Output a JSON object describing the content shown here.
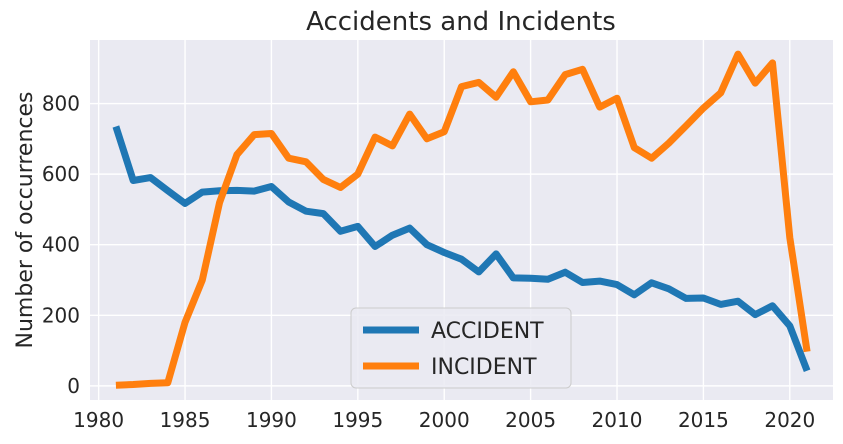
{
  "chart_data": {
    "type": "line",
    "title": "Accidents and Incidents",
    "xlabel": "",
    "ylabel": "Number of occurrences",
    "xlim": [
      1979.5,
      2022.5
    ],
    "ylim": [
      -40,
      980
    ],
    "xticks": [
      1980,
      1985,
      1990,
      1995,
      2000,
      2005,
      2010,
      2015,
      2020
    ],
    "yticks": [
      0,
      200,
      400,
      600,
      800
    ],
    "grid": true,
    "legend_position": "lower-center",
    "background": "#eaeaf2",
    "x": [
      1981,
      1982,
      1983,
      1984,
      1985,
      1986,
      1987,
      1988,
      1989,
      1990,
      1991,
      1992,
      1993,
      1994,
      1995,
      1996,
      1997,
      1998,
      1999,
      2000,
      2001,
      2002,
      2003,
      2004,
      2005,
      2006,
      2007,
      2008,
      2009,
      2010,
      2011,
      2012,
      2013,
      2014,
      2015,
      2016,
      2017,
      2018,
      2019,
      2020,
      2021
    ],
    "series": [
      {
        "name": "ACCIDENT",
        "color": "#1f77b4",
        "values": [
          735,
          582,
          590,
          553,
          517,
          549,
          553,
          554,
          552,
          565,
          521,
          495,
          488,
          438,
          452,
          395,
          427,
          447,
          400,
          378,
          359,
          323,
          374,
          306,
          305,
          302,
          322,
          293,
          297,
          287,
          258,
          292,
          275,
          248,
          249,
          231,
          240,
          202,
          227,
          170,
          43
        ]
      },
      {
        "name": "INCIDENT",
        "color": "#ff7f0e",
        "values": [
          2,
          4,
          7,
          9,
          180,
          300,
          520,
          655,
          712,
          715,
          645,
          635,
          585,
          562,
          600,
          705,
          680,
          770,
          700,
          720,
          848,
          860,
          818,
          890,
          805,
          810,
          882,
          897,
          790,
          815,
          675,
          645,
          688,
          737,
          787,
          830,
          940,
          858,
          915,
          420,
          97
        ]
      }
    ]
  }
}
